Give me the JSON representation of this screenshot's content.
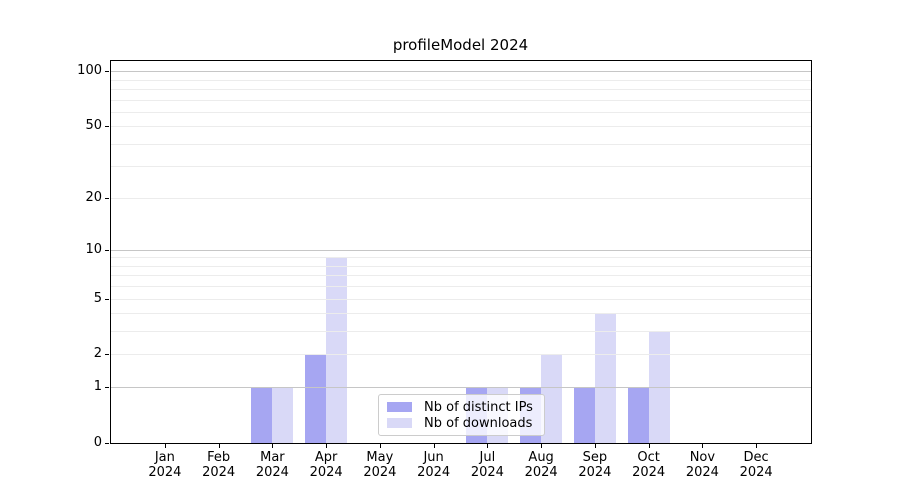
{
  "title": "profileModel 2024",
  "chart_data": {
    "type": "bar",
    "title": "profileModel 2024",
    "x_categories": [
      "Jan",
      "Feb",
      "Mar",
      "Apr",
      "May",
      "Jun",
      "Jul",
      "Aug",
      "Sep",
      "Oct",
      "Nov",
      "Dec"
    ],
    "x_year": "2024",
    "series": [
      {
        "name": "Nb of distinct IPs",
        "color": "#a6a6f2",
        "values": [
          0,
          0,
          1,
          2,
          0,
          0,
          1,
          1,
          1,
          1,
          0,
          0
        ]
      },
      {
        "name": "Nb of downloads",
        "color": "#d9d9f7",
        "values": [
          0,
          0,
          1,
          9,
          0,
          0,
          1,
          2,
          4,
          3,
          0,
          0
        ]
      }
    ],
    "yscale": "log1p",
    "ylim": [
      0,
      115
    ],
    "ytick_labels": [
      "0",
      "1",
      "2",
      "5",
      "10",
      "20",
      "50",
      "100"
    ],
    "ytick_values": [
      0,
      1,
      2,
      5,
      10,
      20,
      50,
      100
    ],
    "grid_major_values": [
      1,
      10,
      100
    ],
    "grid_minor_values": [
      2,
      3,
      4,
      5,
      6,
      7,
      8,
      9,
      20,
      30,
      40,
      50,
      60,
      70,
      80,
      90
    ],
    "legend_position": "lower center",
    "colors": {
      "grid_major": "#c6c6c6",
      "grid_minor": "#ececec",
      "spine": "#000000",
      "legend_border": "#cccccc",
      "background": "#ffffff"
    }
  }
}
